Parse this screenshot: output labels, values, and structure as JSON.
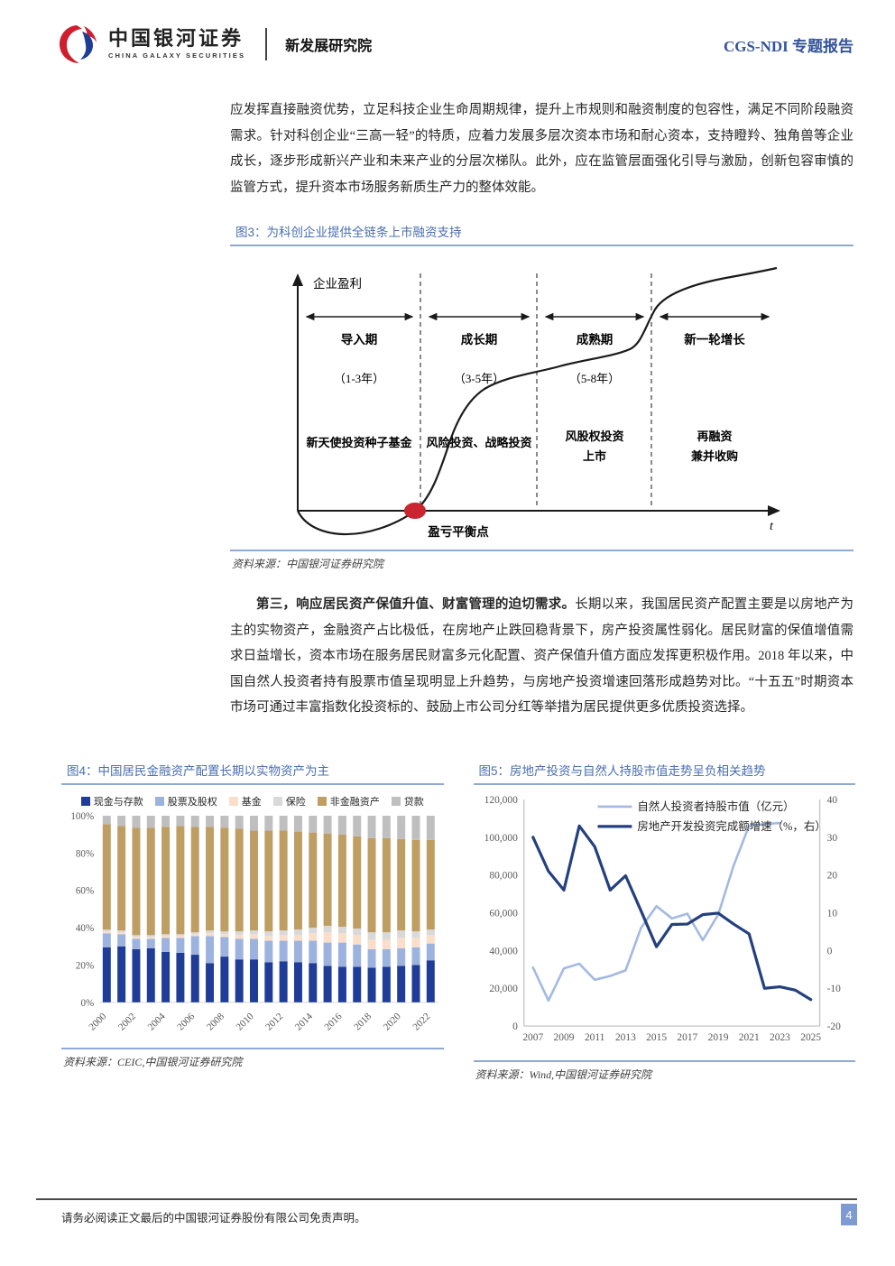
{
  "header": {
    "logo_cn": "中国银河证券",
    "logo_en": "CHINA GALAXY SECURITIES",
    "dept": "新发展研究院",
    "report_type": "CGS-NDI 专题报告"
  },
  "paragraph1": "应发挥直接融资优势，立足科技企业生命周期规律，提升上市规则和融资制度的包容性，满足不同阶段融资需求。针对科创企业“三高一轻”的特质，应着力发展多层次资本市场和耐心资本，支持瞪羚、独角兽等企业成长，逐步形成新兴产业和未来产业的分层次梯队。此外，应在监管层面强化引导与激励，创新包容审慎的监管方式，提升资本市场服务新质生产力的整体效能。",
  "figure3": {
    "title": "图3：为科创企业提供全链条上市融资支持",
    "source": "资料来源：中国银河证券研究院",
    "y_axis_label": "企业盈利",
    "x_axis_label": "t",
    "breakeven_label": "盈亏平衡点",
    "phases": [
      {
        "name": "导入期",
        "years": "（1-3年）",
        "funding1": "新天使投资种子基金",
        "funding2": ""
      },
      {
        "name": "成长期",
        "years": "（3-5年）",
        "funding1": "风险投资、战略投资",
        "funding2": ""
      },
      {
        "name": "成熟期",
        "years": "（5-8年）",
        "funding1": "风股权投资",
        "funding2": "上市"
      },
      {
        "name": "新一轮增长",
        "years": "",
        "funding1": "再融资",
        "funding2": "兼并收购"
      }
    ]
  },
  "paragraph2": {
    "lead": "第三，响应居民资产保值升值、财富管理的迫切需求。",
    "body": "长期以来，我国居民资产配置主要是以房地产为主的实物资产，金融资产占比极低，在房地产止跌回稳背景下，房产投资属性弱化。居民财富的保值增值需求日益增长，资本市场在服务居民财富多元化配置、资产保值升值方面应发挥更积极作用。2018 年以来，中国自然人投资者持有股票市值呈现明显上升趋势，与房地产投资增速回落形成趋势对比。“十五五”时期资本市场可通过丰富指数化投资标的、鼓励上市公司分红等举措为居民提供更多优质投资选择。"
  },
  "figure4": {
    "title": "图4：中国居民金融资产配置长期以实物资产为主",
    "source": "资料来源：CEIC,中国银河证券研究院"
  },
  "figure5": {
    "title": "图5：房地产投资与自然人持股市值走势呈负相关趋势",
    "source": "资料来源：Wind,中国银河证券研究院"
  },
  "footer": {
    "disclaimer": "请务必阅读正文最后的中国银河证券股份有限公司免责声明。",
    "page_number": "4"
  },
  "chart_data": [
    {
      "id": "fig4",
      "type": "bar",
      "stacked": true,
      "title": "中国居民金融资产配置长期以实物资产为主",
      "ylim": [
        0,
        100
      ],
      "ytick_suffix": "%",
      "yticks": [
        0,
        20,
        40,
        60,
        80,
        100
      ],
      "categories": [
        2000,
        2001,
        2002,
        2003,
        2004,
        2005,
        2006,
        2007,
        2008,
        2009,
        2010,
        2011,
        2012,
        2013,
        2014,
        2015,
        2016,
        2017,
        2018,
        2019,
        2020,
        2021,
        2022
      ],
      "xtick_every": 2,
      "series": [
        {
          "name": "现金与存款",
          "color": "#1F3C96",
          "values": [
            29.5,
            30,
            28.5,
            29,
            27,
            26.5,
            25.5,
            21,
            24.5,
            23,
            23,
            21.5,
            22,
            21.5,
            21,
            19.5,
            19,
            19,
            18.5,
            19,
            19.5,
            20,
            22.5
          ]
        },
        {
          "name": "股票及股权",
          "color": "#9DB3DF",
          "values": [
            7.5,
            6.5,
            5.5,
            5,
            7.5,
            8,
            10,
            14.5,
            10.5,
            11,
            11,
            11.5,
            11,
            11.5,
            12,
            12.5,
            13,
            12,
            10,
            9.5,
            9.5,
            9.5,
            9
          ]
        },
        {
          "name": "基金",
          "color": "#FBDEC9",
          "values": [
            1,
            1,
            1,
            1,
            1,
            1,
            1,
            1.5,
            1.5,
            2,
            2.5,
            2.5,
            3,
            3,
            4,
            5.5,
            5,
            5,
            5,
            5,
            5.5,
            5,
            4.5
          ]
        },
        {
          "name": "保险",
          "color": "#D9D9D9",
          "values": [
            1,
            1,
            1,
            1,
            1,
            1,
            1,
            1.5,
            1.5,
            2,
            2,
            2.5,
            2.5,
            3,
            3,
            3.5,
            3.5,
            3.5,
            4,
            4,
            4,
            3.5,
            3
          ]
        },
        {
          "name": "非金融资产",
          "color": "#BF9E63",
          "values": [
            56.5,
            56,
            57.5,
            57.5,
            57.5,
            58,
            56.5,
            55.5,
            55.5,
            55,
            53.5,
            54,
            53.5,
            52.5,
            51,
            49.5,
            49.5,
            49.5,
            50.5,
            50.5,
            49,
            49,
            48
          ]
        },
        {
          "name": "贷款",
          "color": "#BFBFBF",
          "values": [
            4.5,
            5.5,
            6.5,
            6.5,
            6,
            5.5,
            6,
            6,
            6.5,
            7,
            8,
            8,
            8,
            8.5,
            9,
            9.5,
            10,
            11,
            12,
            12,
            12.5,
            13,
            13
          ]
        }
      ]
    },
    {
      "id": "fig5",
      "type": "line",
      "title": "房地产投资与自然人持股市值走势呈负相关趋势",
      "x": [
        2007,
        2008,
        2009,
        2010,
        2011,
        2012,
        2013,
        2014,
        2015,
        2016,
        2017,
        2018,
        2019,
        2020,
        2021,
        2022,
        2023,
        2024,
        2025
      ],
      "xtick_every": 2,
      "left_ylim": [
        0,
        120000
      ],
      "left_yticks": [
        0,
        20000,
        40000,
        60000,
        80000,
        100000,
        120000
      ],
      "right_ylim": [
        -20,
        40
      ],
      "right_yticks": [
        -20,
        -10,
        0,
        10,
        20,
        30,
        40
      ],
      "legend_position": "top",
      "series": [
        {
          "name": "自然人投资者持股市值（亿元）",
          "axis": "left",
          "color": "#A3B9E2",
          "width": 2.6,
          "values": [
            31000,
            13500,
            30500,
            33000,
            24500,
            26500,
            29500,
            52000,
            63500,
            57000,
            59500,
            45500,
            59000,
            85000,
            106000,
            107000,
            107500
          ]
        },
        {
          "name": "房地产开发投资完成额增速（%，右）",
          "axis": "right",
          "color": "#24407E",
          "width": 3.2,
          "values": [
            30,
            21,
            16,
            33,
            27.5,
            16,
            19.8,
            10.5,
            1,
            6.9,
            7,
            9.5,
            9.9,
            7,
            4.4,
            -10,
            -9.6,
            -10.5,
            -13
          ]
        }
      ]
    }
  ]
}
